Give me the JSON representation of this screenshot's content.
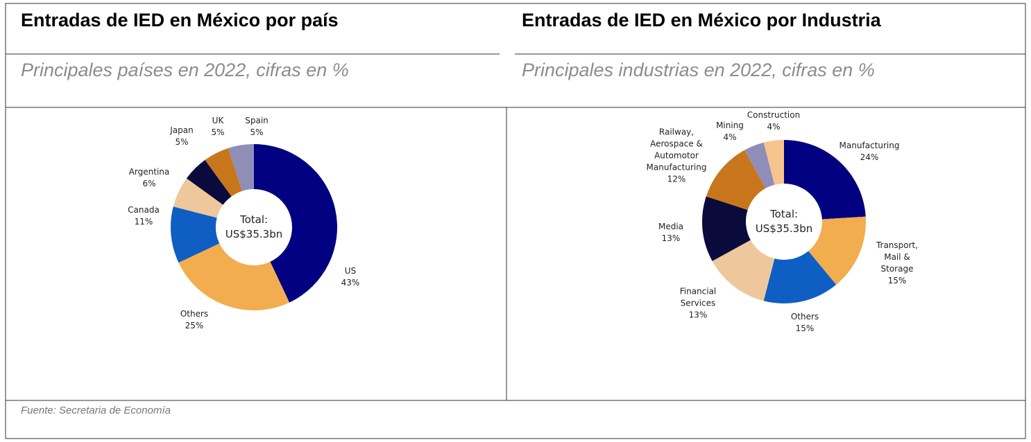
{
  "chart_data": [
    {
      "type": "donut",
      "title": "Entradas de IED en México por país",
      "subtitle": "Principales países en 2022, cifras en %",
      "center_label": "Total: US$35.3bn",
      "categories": [
        "US",
        "Others",
        "Canada",
        "Argentina",
        "Japan",
        "UK",
        "Spain"
      ],
      "values": [
        43,
        25,
        11,
        6,
        5,
        5,
        5
      ],
      "value_labels": [
        "43%",
        "25%",
        "11%",
        "6%",
        "5%",
        "5%",
        "5%"
      ],
      "colors": [
        "#000080",
        "#f2ad4e",
        "#0f5ec4",
        "#eec89c",
        "#0a0a3c",
        "#c8761c",
        "#8e8eb9"
      ]
    },
    {
      "type": "donut",
      "title": "Entradas de IED en México por Industria",
      "subtitle": "Principales industrias en 2022, cifras en %",
      "center_label": "Total: US$35.3bn",
      "categories": [
        "Manufacturing",
        "Transport, Mail & Storage",
        "Others",
        "Financial Services",
        "Media",
        "Railway, Aerospace & Automotor Manufacturing",
        "Mining",
        "Construction"
      ],
      "values": [
        24,
        15,
        15,
        13,
        13,
        12,
        4,
        4
      ],
      "value_labels": [
        "24%",
        "15%",
        "15%",
        "13%",
        "13%",
        "12%",
        "4%",
        "4%"
      ],
      "colors": [
        "#000080",
        "#f2ad4e",
        "#0f5ec4",
        "#eec89c",
        "#0a0a3c",
        "#c8761c",
        "#8e8eb9",
        "#f6c48c"
      ]
    }
  ],
  "source": "Fuente: Secretaria de Economía"
}
